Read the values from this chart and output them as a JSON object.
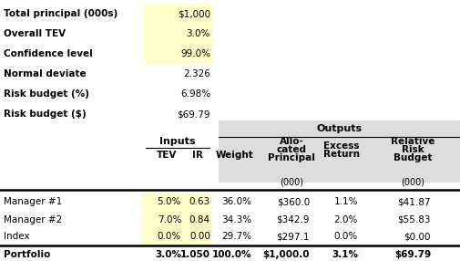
{
  "summary_labels": [
    "Total principal (000s)",
    "Overall TEV",
    "Confidence level",
    "Normal deviate",
    "Risk budget (%)",
    "Risk budget ($)"
  ],
  "summary_values": [
    "$1,000",
    "3.0%",
    "99.0%",
    "2.326",
    "6.98%",
    "$69.79"
  ],
  "summary_yellow": [
    true,
    true,
    true,
    false,
    false,
    false
  ],
  "row_labels": [
    "Manager #1",
    "Manager #2",
    "Index",
    "Portfolio"
  ],
  "row_yellow": [
    true,
    true,
    true,
    false
  ],
  "tev_vals": [
    "5.0%",
    "7.0%",
    "0.0%",
    "3.0%"
  ],
  "ir_vals": [
    "0.63",
    "0.84",
    "0.00",
    "1.050"
  ],
  "weight_vals": [
    "36.0%",
    "34.3%",
    "29.7%",
    "100.0%"
  ],
  "principal_vals": [
    "$360.0",
    "$342.9",
    "$297.1",
    "$1,000.0"
  ],
  "excess_vals": [
    "1.1%",
    "2.0%",
    "0.0%",
    "3.1%"
  ],
  "riskbudget_vals": [
    "$41.87",
    "$55.83",
    "$0.00",
    "$69.79"
  ],
  "yellow_color": "#FFFFCC",
  "white_color": "#FFFFFF",
  "light_gray": "#DCDCDC",
  "black": "#000000",
  "fig_w": 5.05,
  "fig_h": 2.86,
  "dpi": 100
}
